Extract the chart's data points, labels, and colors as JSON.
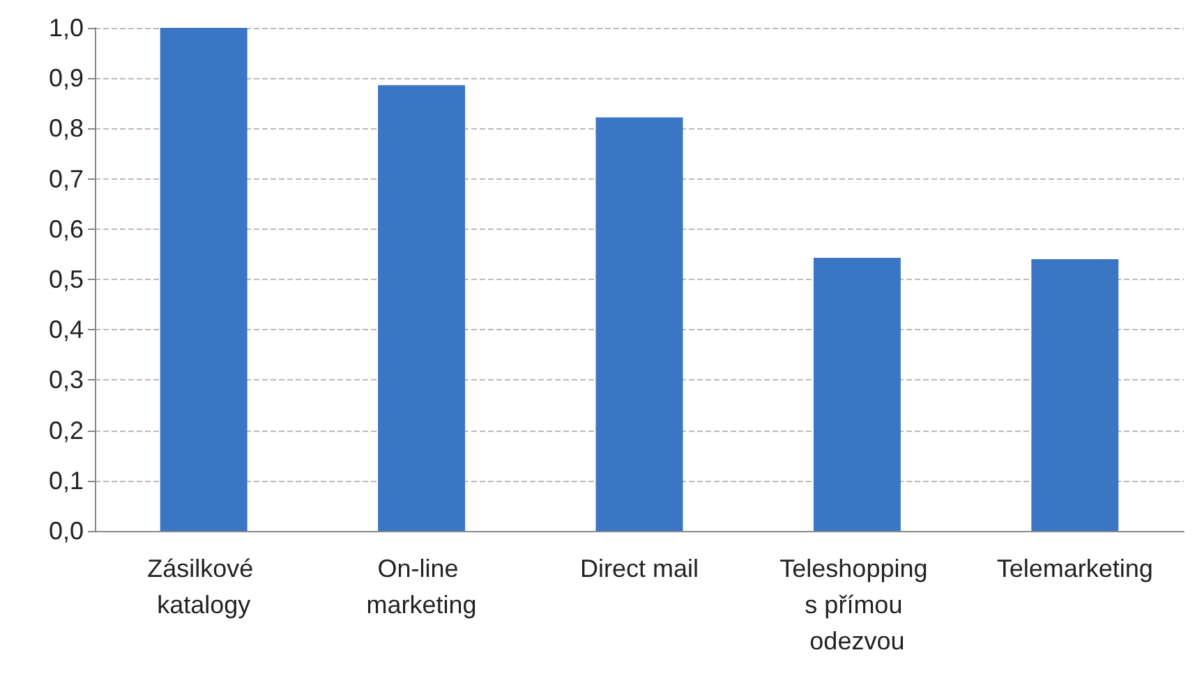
{
  "chart_data": {
    "type": "bar",
    "categories": [
      "Zásilkové katalogy",
      "On-line marketing",
      "Direct mail",
      "Teleshopping s přímou odezvou",
      "Telemarketing"
    ],
    "values": [
      1.0,
      0.886,
      0.822,
      0.543,
      0.54
    ],
    "color": "#3a76c4",
    "ylim": [
      0,
      1
    ],
    "yticks": [
      {
        "value": 0,
        "label": "0,0"
      },
      {
        "value": 0.1,
        "label": "0,1"
      },
      {
        "value": 0.2,
        "label": "0,2"
      },
      {
        "value": 0.3,
        "label": "0,3"
      },
      {
        "value": 0.4,
        "label": "0,4"
      },
      {
        "value": 0.5,
        "label": "0,5"
      },
      {
        "value": 0.6,
        "label": "0,6"
      },
      {
        "value": 0.7,
        "label": "0,7"
      },
      {
        "value": 0.8,
        "label": "0,8"
      },
      {
        "value": 0.9,
        "label": "0,9"
      },
      {
        "value": 1.0,
        "label": "1,0"
      }
    ],
    "grid": "y"
  }
}
